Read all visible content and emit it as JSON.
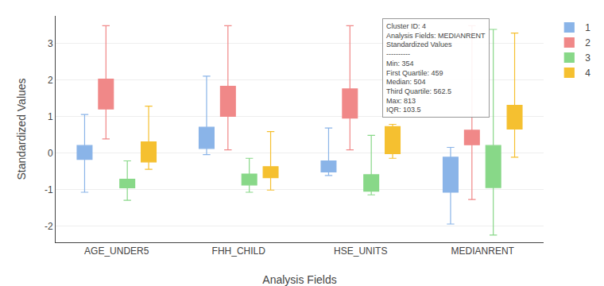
{
  "chart_data": {
    "type": "box",
    "xlabel": "Analysis Fields",
    "ylabel": "Standardized Values",
    "categories": [
      "AGE_UNDER5",
      "FHH_CHILD",
      "HSE_UNITS",
      "MEDIANRENT"
    ],
    "series": [
      {
        "name": "1",
        "color": "#8ab4e8",
        "values": [
          {
            "low": -1.08,
            "q1": -0.18,
            "median": 0.02,
            "q3": 0.2,
            "high": 1.05
          },
          {
            "low": -0.05,
            "q1": 0.12,
            "median": 0.4,
            "q3": 0.7,
            "high": 2.1
          },
          {
            "low": -0.62,
            "q1": -0.52,
            "median": -0.38,
            "q3": -0.22,
            "high": 0.68
          },
          {
            "low": -1.95,
            "q1": -1.08,
            "median": -0.72,
            "q3": -0.12,
            "high": 0.15
          }
        ]
      },
      {
        "name": "2",
        "color": "#f08888",
        "values": [
          {
            "low": 0.38,
            "q1": 1.2,
            "median": 1.65,
            "q3": 2.02,
            "high": 3.48
          },
          {
            "low": 0.08,
            "q1": 1.0,
            "median": 1.48,
            "q3": 1.82,
            "high": 3.48
          },
          {
            "low": 0.08,
            "q1": 0.95,
            "median": 1.38,
            "q3": 1.75,
            "high": 3.48
          },
          {
            "low": -1.28,
            "q1": 0.22,
            "median": 0.42,
            "q3": 0.62,
            "high": 3.48
          }
        ]
      },
      {
        "name": "3",
        "color": "#88d888",
        "values": [
          {
            "low": -1.3,
            "q1": -0.96,
            "median": -0.85,
            "q3": -0.72,
            "high": -0.22
          },
          {
            "low": -1.08,
            "q1": -0.88,
            "median": -0.72,
            "q3": -0.58,
            "high": -0.15
          },
          {
            "low": -1.15,
            "q1": -1.05,
            "median": -0.85,
            "q3": -0.6,
            "high": 0.48
          },
          {
            "low": -2.25,
            "q1": -0.95,
            "median": -0.72,
            "q3": 0.2,
            "high": 3.38
          }
        ]
      },
      {
        "name": "4",
        "color": "#f5c030",
        "values": [
          {
            "low": -0.45,
            "q1": -0.25,
            "median": -0.05,
            "q3": 0.3,
            "high": 1.28
          },
          {
            "low": -1.02,
            "q1": -0.68,
            "median": -0.55,
            "q3": -0.38,
            "high": 0.58
          },
          {
            "low": -0.15,
            "q1": -0.02,
            "median": 0.3,
            "q3": 0.72,
            "high": 0.78
          },
          {
            "low": -0.12,
            "q1": 0.65,
            "median": 0.92,
            "q3": 1.3,
            "high": 3.28
          }
        ]
      }
    ],
    "ylim": [
      -2.45,
      3.75
    ],
    "yticks": [
      -2,
      -1,
      0,
      1,
      2,
      3
    ],
    "grid": "y",
    "legend": "upper right",
    "annotations": [
      {
        "text": [
          "Cluster ID: 4",
          "Analysis Fields: MEDIANRENT",
          "Standardized Values",
          "----------",
          "Min: 354",
          "First Quartile: 459",
          "Median: 504",
          "Third Quartile: 562.5",
          "Max: 813",
          "IQR: 103.5"
        ]
      }
    ]
  }
}
